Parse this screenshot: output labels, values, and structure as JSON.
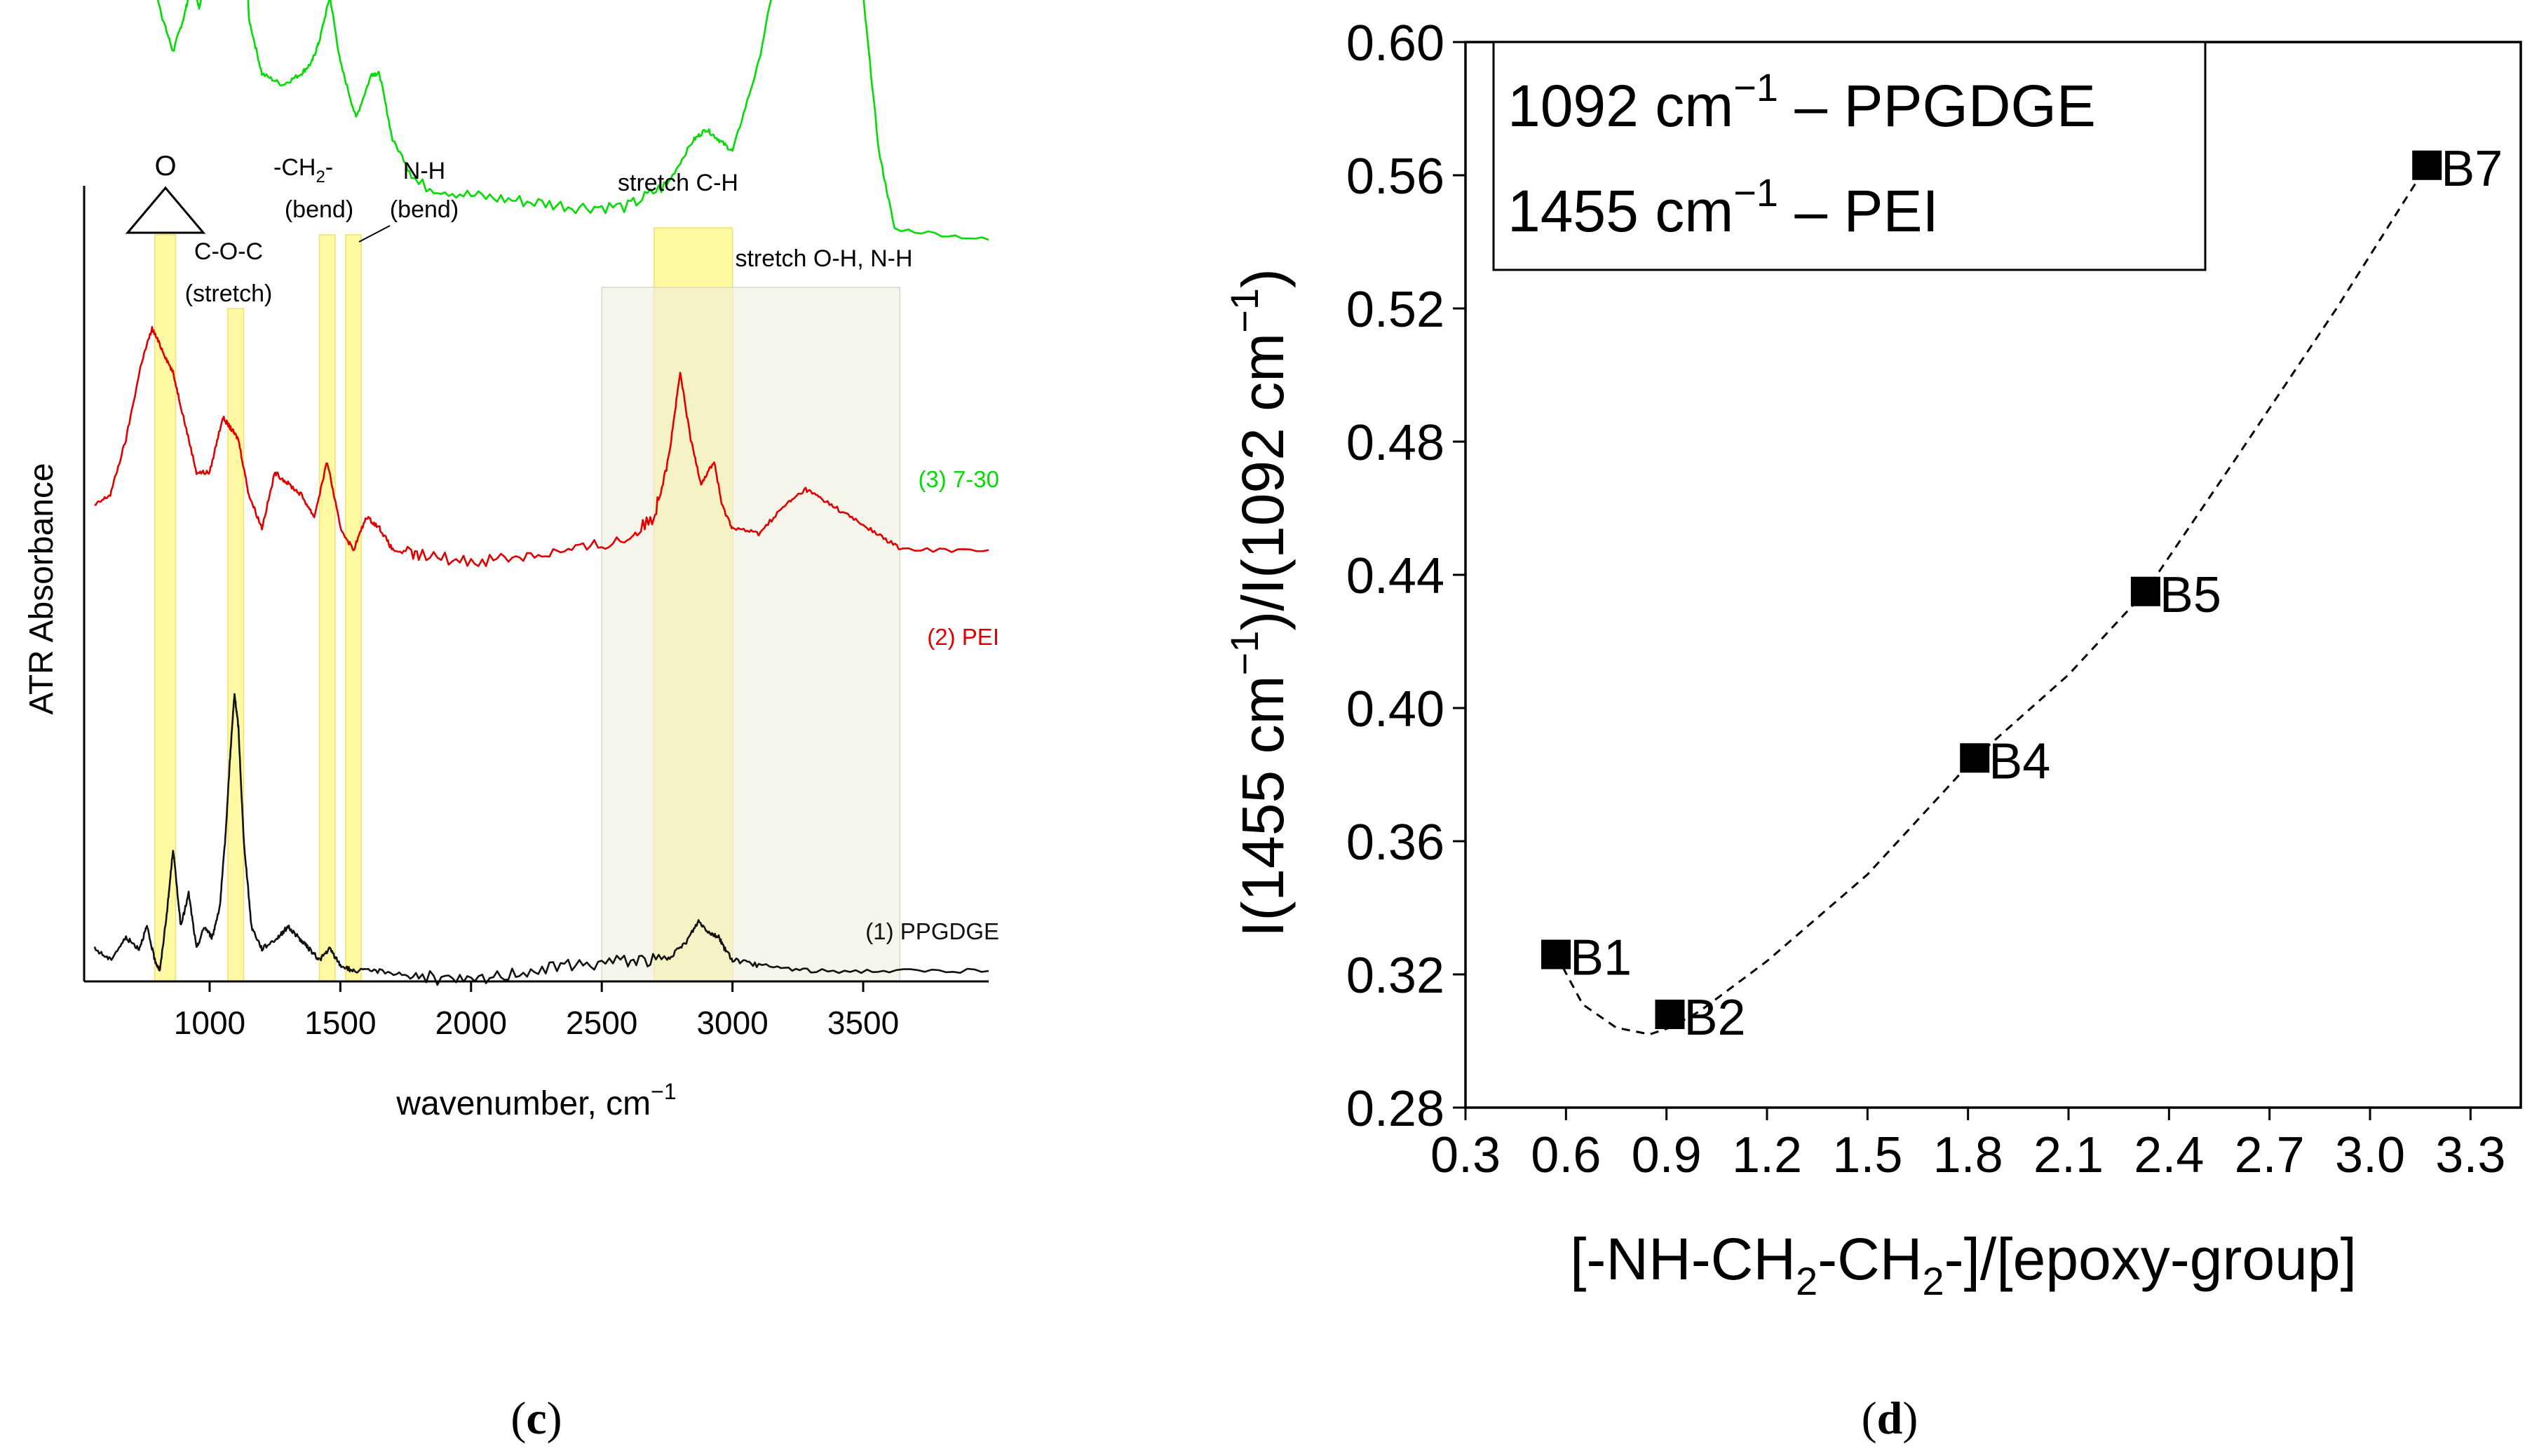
{
  "chart_data": [
    {
      "type": "line",
      "panel_label": "c",
      "xlabel": "wavenumber, cm",
      "xlabel_sup": "−1",
      "ylabel": "ATR Absorbance",
      "xlim": [
        520,
        3980
      ],
      "xticks": [
        1000,
        1500,
        2000,
        2500,
        3000,
        3500
      ],
      "tick_labels": [
        "1000",
        "1500",
        "2000",
        "2500",
        "3000",
        "3500"
      ],
      "y_ticks_shown": false,
      "series": [
        {
          "name": "(3) 7-30",
          "color": "#00dd00",
          "offset": 0.66,
          "x": [
            560,
            620,
            700,
            760,
            820,
            860,
            900,
            930,
            960,
            1000,
            1050,
            1075,
            1095,
            1120,
            1150,
            1200,
            1280,
            1350,
            1390,
            1420,
            1460,
            1500,
            1560,
            1620,
            1650,
            1700,
            1800,
            2000,
            2200,
            2400,
            2600,
            2750,
            2850,
            2900,
            2950,
            3000,
            3100,
            3200,
            3300,
            3370,
            3450,
            3500,
            3560,
            3620,
            3980
          ],
          "y": [
            0.44,
            0.4,
            0.33,
            0.26,
            0.2,
            0.17,
            0.2,
            0.23,
            0.21,
            0.26,
            0.36,
            0.41,
            0.42,
            0.37,
            0.2,
            0.15,
            0.14,
            0.15,
            0.16,
            0.18,
            0.22,
            0.16,
            0.11,
            0.15,
            0.15,
            0.09,
            0.05,
            0.04,
            0.035,
            0.03,
            0.03,
            0.05,
            0.09,
            0.1,
            0.09,
            0.08,
            0.16,
            0.28,
            0.36,
            0.38,
            0.3,
            0.22,
            0.08,
            0.01,
            0.0
          ]
        },
        {
          "name": "(2) PEI",
          "color": "#e00000",
          "offset": 0.38,
          "x": [
            560,
            620,
            680,
            740,
            780,
            820,
            860,
            900,
            950,
            1000,
            1050,
            1080,
            1110,
            1150,
            1200,
            1250,
            1300,
            1350,
            1400,
            1450,
            1500,
            1550,
            1600,
            1650,
            1700,
            1800,
            2000,
            2200,
            2400,
            2600,
            2700,
            2760,
            2800,
            2840,
            2880,
            2930,
            2960,
            3000,
            3100,
            3200,
            3280,
            3350,
            3450,
            3550,
            3650,
            3980
          ],
          "y": [
            0.04,
            0.05,
            0.1,
            0.17,
            0.2,
            0.18,
            0.16,
            0.12,
            0.07,
            0.07,
            0.12,
            0.11,
            0.1,
            0.05,
            0.02,
            0.07,
            0.06,
            0.05,
            0.03,
            0.08,
            0.02,
            0.0,
            0.03,
            0.02,
            0.0,
            -0.005,
            -0.01,
            -0.005,
            0.0,
            0.01,
            0.03,
            0.09,
            0.16,
            0.1,
            0.06,
            0.08,
            0.04,
            0.02,
            0.015,
            0.04,
            0.055,
            0.045,
            0.03,
            0.015,
            0.0,
            0.0
          ]
        },
        {
          "name": "(1) PPGDGE",
          "color": "#111111",
          "offset": 0.0,
          "x": [
            560,
            620,
            680,
            730,
            760,
            790,
            810,
            840,
            860,
            890,
            920,
            950,
            980,
            1010,
            1040,
            1060,
            1080,
            1095,
            1110,
            1130,
            1160,
            1200,
            1260,
            1300,
            1340,
            1380,
            1420,
            1460,
            1500,
            1550,
            1650,
            1800,
            2000,
            2200,
            2400,
            2600,
            2750,
            2820,
            2870,
            2910,
            2950,
            2970,
            3000,
            3100,
            3300,
            3600,
            3980
          ],
          "y": [
            0.02,
            0.01,
            0.03,
            0.02,
            0.04,
            0.01,
            0.0,
            0.06,
            0.11,
            0.04,
            0.07,
            0.02,
            0.04,
            0.03,
            0.06,
            0.12,
            0.2,
            0.25,
            0.22,
            0.12,
            0.04,
            0.02,
            0.03,
            0.04,
            0.03,
            0.02,
            0.01,
            0.02,
            0.005,
            0.0,
            0.0,
            -0.005,
            -0.01,
            0.0,
            0.005,
            0.01,
            0.01,
            0.025,
            0.045,
            0.035,
            0.03,
            0.02,
            0.01,
            0.005,
            0.0,
            0.0,
            0.0
          ]
        }
      ],
      "bands": [
        {
          "x0": 790,
          "x1": 870,
          "style": "band"
        },
        {
          "x0": 1070,
          "x1": 1130,
          "style": "band"
        },
        {
          "x0": 1420,
          "x1": 1480,
          "style": "band"
        },
        {
          "x0": 1520,
          "x1": 1580,
          "style": "band"
        },
        {
          "x0": 2700,
          "x1": 3000,
          "style": "band"
        },
        {
          "x0": 2500,
          "x1": 3640,
          "style": "region"
        }
      ],
      "annotations": [
        "C-O-C",
        "(stretch)",
        "-CH",
        "2",
        "-",
        "(bend)",
        "N-H",
        "(bend)",
        "stretch C-H",
        "stretch O-H, N-H"
      ],
      "epoxide_atom": "O"
    },
    {
      "type": "scatter",
      "panel_label": "d",
      "xlim": [
        0.3,
        3.45
      ],
      "ylim": [
        0.28,
        0.6
      ],
      "xticks": [
        "0.3",
        "0.6",
        "0.9",
        "1.2",
        "1.5",
        "1.8",
        "2.1",
        "2.4",
        "2.7",
        "3.0",
        "3.3"
      ],
      "yticks": [
        "0.28",
        "0.32",
        "0.36",
        "0.40",
        "0.44",
        "0.48",
        "0.52",
        "0.56",
        "0.60"
      ],
      "points": [
        {
          "label": "B1",
          "x": 0.57,
          "y": 0.326
        },
        {
          "label": "B2",
          "x": 0.91,
          "y": 0.308
        },
        {
          "label": "B4",
          "x": 1.82,
          "y": 0.385
        },
        {
          "label": "B5",
          "x": 2.33,
          "y": 0.435
        },
        {
          "label": "B7",
          "x": 3.17,
          "y": 0.563
        }
      ],
      "fit_curve": {
        "style": "dashed",
        "x": [
          0.57,
          0.65,
          0.75,
          0.85,
          0.91,
          1.0,
          1.2,
          1.5,
          1.82,
          2.1,
          2.33,
          2.6,
          2.9,
          3.17
        ],
        "y": [
          0.326,
          0.311,
          0.304,
          0.302,
          0.304,
          0.309,
          0.324,
          0.35,
          0.385,
          0.41,
          0.435,
          0.475,
          0.52,
          0.563
        ]
      },
      "legend_lines": [
        {
          "pre": "1092 cm",
          "sup": "−1",
          "post": " – PPGDGE"
        },
        {
          "pre": "1455 cm",
          "sup": "−1",
          "post": " – PEI"
        }
      ],
      "xlabel_parts": [
        "[-NH-CH",
        "2",
        "-CH",
        "2",
        "-]/[epoxy-group]"
      ],
      "ylabel_parts": [
        "I(1455 cm",
        "−1",
        ")/I(1092 cm",
        "−1",
        ")"
      ]
    }
  ],
  "captions": {
    "c": {
      "open": "(",
      "letter": "c",
      "close": ")"
    },
    "d": {
      "open": "(",
      "letter": "d",
      "close": ")"
    }
  }
}
